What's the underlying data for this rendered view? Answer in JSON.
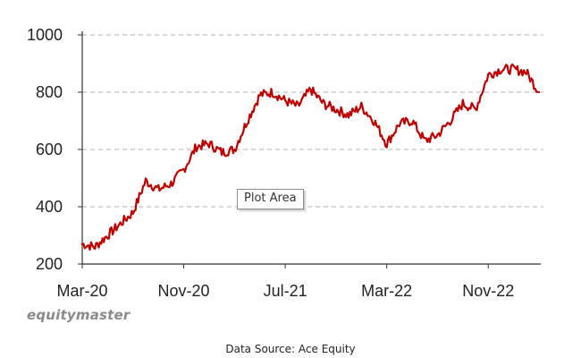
{
  "chart_data": {
    "type": "line",
    "title": "",
    "xlabel": "",
    "ylabel": "",
    "ylim": [
      200,
      1000
    ],
    "yticks": [
      200,
      400,
      600,
      800,
      1000
    ],
    "x_tick_labels": [
      "Mar-20",
      "Nov-20",
      "Jul-21",
      "Mar-22",
      "Nov-22"
    ],
    "grid": "horizontal dashed",
    "line_color": "#c00000",
    "x": [
      "Mar-20",
      "Apr-20",
      "May-20",
      "Jun-20",
      "Jul-20",
      "Aug-20",
      "Sep-20",
      "Oct-20",
      "Nov-20",
      "Dec-20",
      "Jan-21",
      "Feb-21",
      "Mar-21",
      "Apr-21",
      "May-21",
      "Jun-21",
      "Jul-21",
      "Aug-21",
      "Sep-21",
      "Oct-21",
      "Nov-21",
      "Dec-21",
      "Jan-22",
      "Feb-22",
      "Mar-22",
      "Apr-22",
      "May-22",
      "Jun-22",
      "Jul-22",
      "Aug-22",
      "Sep-22",
      "Oct-22",
      "Nov-22",
      "Dec-22",
      "Jan-23",
      "Feb-23",
      "Mar-23"
    ],
    "series": [
      {
        "values": [
          270,
          260,
          300,
          340,
          380,
          490,
          460,
          480,
          530,
          610,
          620,
          590,
          600,
          700,
          790,
          800,
          770,
          750,
          810,
          760,
          740,
          720,
          750,
          700,
          620,
          690,
          700,
          630,
          650,
          700,
          760,
          740,
          860,
          880,
          880,
          870,
          800
        ]
      }
    ]
  },
  "watermark": "equitymaster",
  "source": "Data Source: Ace Equity",
  "tooltip": "Plot Area"
}
